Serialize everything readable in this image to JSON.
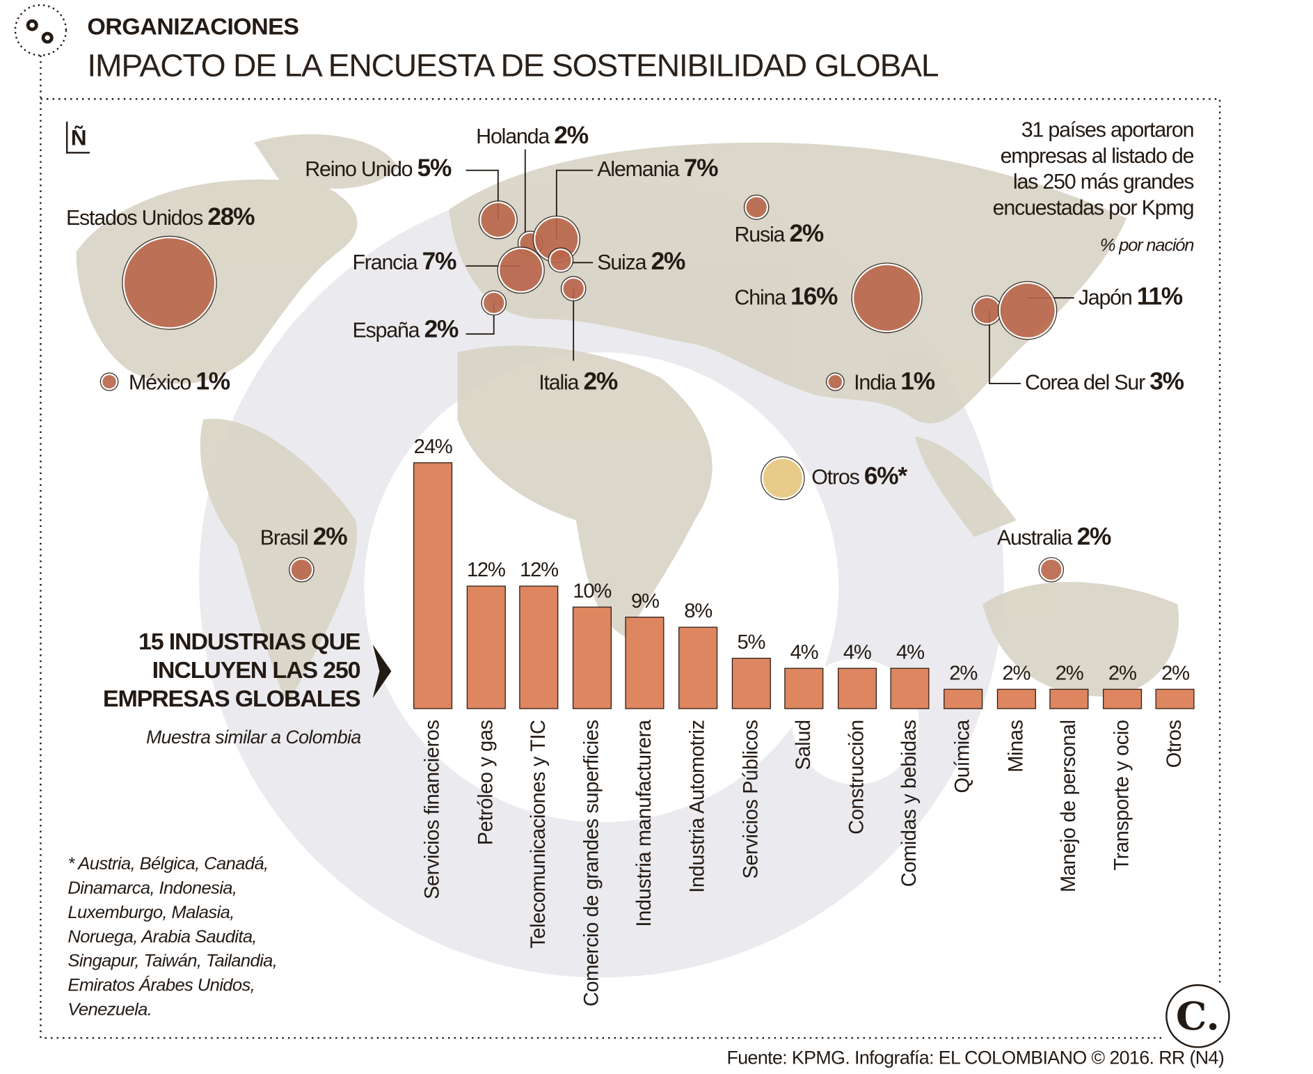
{
  "header": {
    "kicker": "ORGANIZACIONES",
    "title": "IMPACTO DE LA ENCUESTA DE SOSTENIBILIDAD GLOBAL"
  },
  "map": {
    "compass": "Ñ",
    "note_lines": [
      "31 países aportaron",
      "empresas al listado de",
      "las 250 más grandes",
      "encuestadas por Kpmg"
    ],
    "note_sub": "% por nación",
    "countries": [
      {
        "name": "Estados Unidos",
        "pct": "28%",
        "value": 28
      },
      {
        "name": "México",
        "pct": "1%",
        "value": 1
      },
      {
        "name": "Brasil",
        "pct": "2%",
        "value": 2
      },
      {
        "name": "Reino Unido",
        "pct": "5%",
        "value": 5
      },
      {
        "name": "Holanda",
        "pct": "2%",
        "value": 2
      },
      {
        "name": "Alemania",
        "pct": "7%",
        "value": 7
      },
      {
        "name": "Francia",
        "pct": "7%",
        "value": 7
      },
      {
        "name": "Suiza",
        "pct": "2%",
        "value": 2
      },
      {
        "name": "España",
        "pct": "2%",
        "value": 2
      },
      {
        "name": "Italia",
        "pct": "2%",
        "value": 2
      },
      {
        "name": "Rusia",
        "pct": "2%",
        "value": 2
      },
      {
        "name": "China",
        "pct": "16%",
        "value": 16
      },
      {
        "name": "India",
        "pct": "1%",
        "value": 1
      },
      {
        "name": "Corea del Sur",
        "pct": "3%",
        "value": 3
      },
      {
        "name": "Japón",
        "pct": "11%",
        "value": 11
      },
      {
        "name": "Otros",
        "pct": "6%*",
        "value": 6
      },
      {
        "name": "Australia",
        "pct": "2%",
        "value": 2
      }
    ]
  },
  "industries": {
    "heading_lines": [
      "15 INDUSTRIAS QUE",
      "INCLUYEN LAS 250",
      "EMPRESAS GLOBALES"
    ],
    "subheading": "Muestra similar a Colombia"
  },
  "chart_data": {
    "type": "bar",
    "title": "15 industrias que incluyen las 250 empresas globales",
    "categories": [
      "Servicios financieros",
      "Petróleo y gas",
      "Telecomunicaciones y TIC",
      "Comercio de grandes superficies",
      "Industria manufacturera",
      "Industria Automotriz",
      "Servicios Públicos",
      "Salud",
      "Construcción",
      "Comidas y bebidas",
      "Química",
      "Minas",
      "Manejo de personal",
      "Transporte y ocio",
      "Otros"
    ],
    "values": [
      24,
      12,
      12,
      10,
      9,
      8,
      5,
      4,
      4,
      4,
      2,
      2,
      2,
      2,
      2
    ],
    "labels": [
      "24%",
      "12%",
      "12%",
      "10%",
      "9%",
      "8%",
      "5%",
      "4%",
      "4%",
      "4%",
      "2%",
      "2%",
      "2%",
      "2%",
      "2%"
    ],
    "ylim": [
      0,
      24
    ],
    "xlabel": "",
    "ylabel": "",
    "bar_color": "#dd8660"
  },
  "footnote_lines": [
    "* Austria, Bélgica, Canadá,",
    "Dinamarca, Indonesia,",
    "Luxemburgo, Malasia,",
    "Noruega, Arabia Saudita,",
    "Singapur, Taiwán, Tailandia,",
    "Emiratos Árabes Unidos,",
    "Venezuela."
  ],
  "source": "Fuente: KPMG. Infografía: EL COLOMBIANO © 2016. RR (N4)",
  "logo": "C.",
  "colors": {
    "bubble": "#b9654a",
    "otros_bubble": "#e6c67c",
    "land": "#d8d4c5",
    "watermark": "#ebebef"
  }
}
